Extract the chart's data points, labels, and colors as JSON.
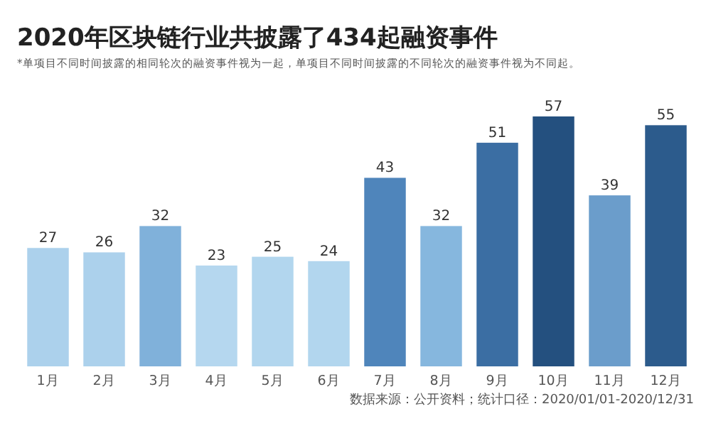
{
  "chart_data": {
    "type": "bar",
    "title": "2020年区块链行业共披露了434起融资事件",
    "subtitle": "*单项目不同时间披露的相同轮次的融资事件视为一起，单项目不同时间披露的不同轮次的融资事件视为不同起。",
    "categories": [
      "1月",
      "2月",
      "3月",
      "4月",
      "5月",
      "6月",
      "7月",
      "8月",
      "9月",
      "10月",
      "11月",
      "12月"
    ],
    "values": [
      27,
      26,
      32,
      23,
      25,
      24,
      43,
      32,
      51,
      57,
      39,
      55
    ],
    "colors": [
      "#acd1ec",
      "#acd1ec",
      "#80b1da",
      "#b5d7ef",
      "#b2d6ee",
      "#b2d6ee",
      "#4f85bb",
      "#86b7de",
      "#3b6ea3",
      "#24507f",
      "#6b9dcb",
      "#2c5b8c"
    ],
    "data_labels": true,
    "annotations": [
      "数据来源：公开资料；统计口径：2020/01/01-2020/12/31"
    ]
  }
}
